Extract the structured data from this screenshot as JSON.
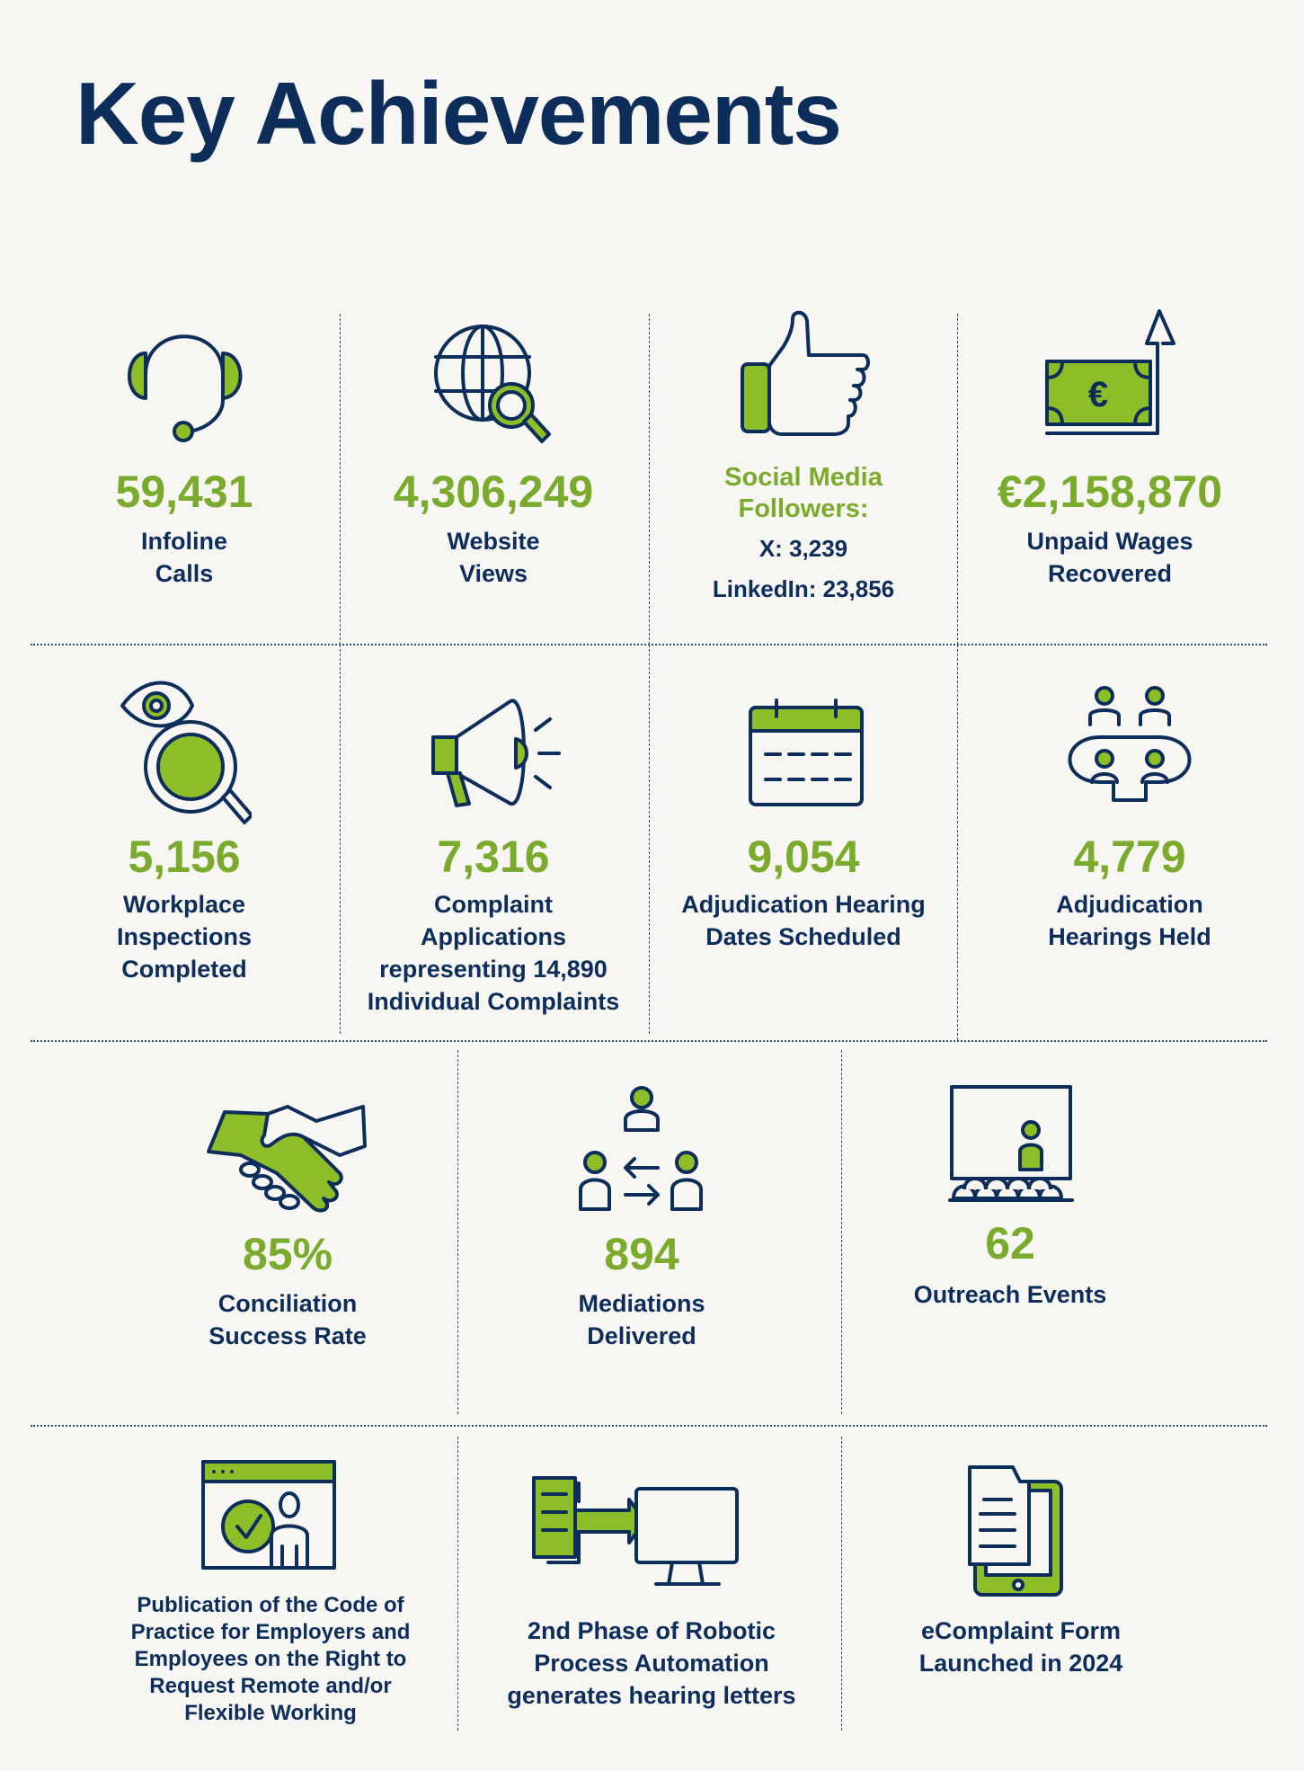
{
  "title": "Key Achievements",
  "colors": {
    "accent_green": "#7aab2c",
    "navy": "#0d2d5a",
    "background": "#f7f6f3"
  },
  "row1": [
    {
      "icon": "headset-icon",
      "value": "59,431",
      "label": [
        "Infoline",
        "Calls"
      ]
    },
    {
      "icon": "globe-search-icon",
      "value": "4,306,249",
      "label": [
        "Website",
        "Views"
      ]
    },
    {
      "icon": "thumbs-up-icon",
      "heading": [
        "Social Media",
        "Followers:"
      ],
      "label": [
        "X: 3,239",
        "LinkedIn: 23,856"
      ]
    },
    {
      "icon": "euro-banknote-arrow-icon",
      "value": "€2,158,870",
      "label": [
        "Unpaid Wages",
        "Recovered"
      ]
    }
  ],
  "row2": [
    {
      "icon": "eye-magnifier-icon",
      "value": "5,156",
      "label": [
        "Workplace",
        "Inspections",
        "Completed"
      ]
    },
    {
      "icon": "megaphone-icon",
      "value": "7,316",
      "label": [
        "Complaint",
        "Applications",
        "representing 14,890",
        "Individual Complaints"
      ]
    },
    {
      "icon": "calendar-icon",
      "value": "9,054",
      "label": [
        "Adjudication Hearing",
        "Dates Scheduled"
      ]
    },
    {
      "icon": "meeting-table-icon",
      "value": "4,779",
      "label": [
        "Adjudication",
        "Hearings Held"
      ]
    }
  ],
  "row3": [
    {
      "icon": "handshake-icon",
      "value": "85%",
      "label": [
        "Conciliation",
        "Success Rate"
      ]
    },
    {
      "icon": "mediation-people-icon",
      "value": "894",
      "label": [
        "Mediations",
        "Delivered"
      ]
    },
    {
      "icon": "presentation-audience-icon",
      "value": "62",
      "label": [
        "Outreach Events"
      ]
    }
  ],
  "row4": [
    {
      "icon": "browser-person-check-icon",
      "label": [
        "Publication of the Code of",
        "Practice for Employers and",
        "Employees on the Right to",
        "Request Remote and/or",
        "Flexible Working"
      ]
    },
    {
      "icon": "document-to-monitor-icon",
      "label": [
        "2nd Phase of Robotic",
        "Process Automation",
        "generates hearing letters"
      ]
    },
    {
      "icon": "tablet-document-icon",
      "label": [
        "eComplaint Form",
        "Launched in 2024"
      ]
    }
  ]
}
